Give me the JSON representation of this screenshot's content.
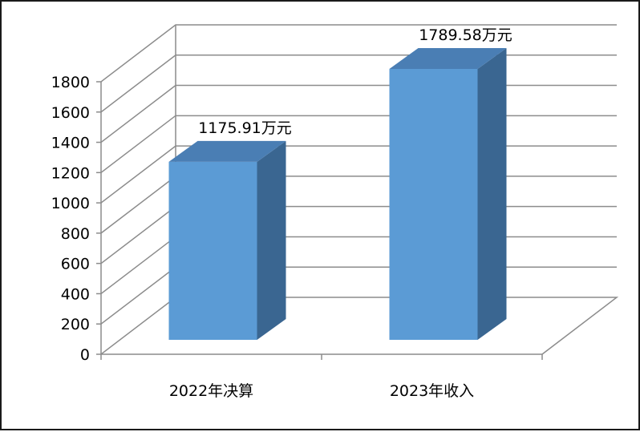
{
  "chart_data": {
    "type": "bar",
    "categories": [
      "2022年决算",
      "2023年收入"
    ],
    "values": [
      1175.91,
      1789.58
    ],
    "data_labels": [
      "1175.91万元",
      "1789.58万元"
    ],
    "yticks": [
      "0",
      "200",
      "400",
      "600",
      "800",
      "1000",
      "1200",
      "1400",
      "1600",
      "1800"
    ],
    "ylim": [
      0,
      1800
    ],
    "title": "",
    "xlabel": "",
    "ylabel": "",
    "grid": true,
    "legend": "none",
    "style": "3d-column"
  },
  "colors": {
    "bar_front": "#5B9BD5",
    "bar_top": "#4A7EB4",
    "bar_side": "#3A6691",
    "grid": "#8C8C8C"
  }
}
